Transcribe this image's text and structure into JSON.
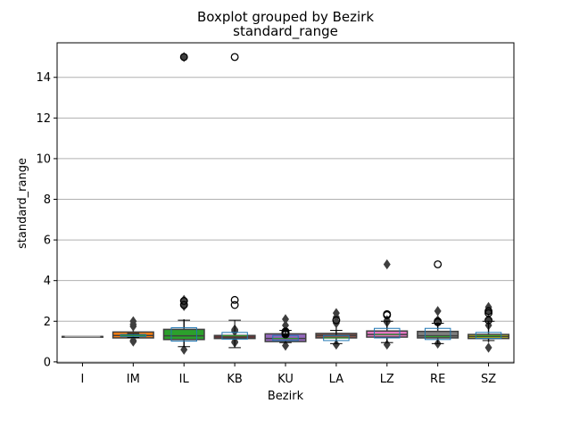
{
  "chart_data": {
    "type": "box",
    "suptitle": "Boxplot grouped by Bezirk",
    "title": "standard_range",
    "xlabel": "Bezirk",
    "ylabel": "standard_range",
    "ylim": [
      -0.05,
      15.7
    ],
    "yticks": [
      0,
      2,
      4,
      6,
      8,
      10,
      12,
      14
    ],
    "grid": "y",
    "categories": [
      "I",
      "IM",
      "IL",
      "KB",
      "KU",
      "LA",
      "LZ",
      "RE",
      "SZ"
    ],
    "seaborn_boxes": [
      {
        "category": "I",
        "color": "#7f7f7f",
        "q1": 1.25,
        "median": 1.25,
        "q3": 1.25,
        "whislo": 1.25,
        "whishi": 1.25,
        "fliers": []
      },
      {
        "category": "IM",
        "color": "#ff7f0e",
        "q1": 1.18,
        "median": 1.3,
        "q3": 1.47,
        "whislo": 1.08,
        "whishi": 1.62,
        "fliers": [
          1.0,
          1.05,
          1.75,
          1.85,
          2.0
        ]
      },
      {
        "category": "IL",
        "color": "#2ca02c",
        "q1": 1.1,
        "median": 1.28,
        "q3": 1.6,
        "whislo": 0.7,
        "whishi": 2.1,
        "fliers": [
          0.6,
          2.75,
          2.85,
          2.95,
          3.05,
          15.0
        ]
      },
      {
        "category": "KB",
        "color": "#d62728",
        "q1": 1.15,
        "median": 1.22,
        "q3": 1.3,
        "whislo": 1.05,
        "whishi": 1.45,
        "fliers": [
          0.95,
          1.0,
          1.5,
          1.55,
          1.6
        ]
      },
      {
        "category": "KU",
        "color": "#9467bd",
        "q1": 1.0,
        "median": 1.15,
        "q3": 1.38,
        "whislo": 0.85,
        "whishi": 1.7,
        "fliers": [
          0.8,
          1.8,
          2.1
        ]
      },
      {
        "category": "LA",
        "color": "#8c564b",
        "q1": 1.18,
        "median": 1.3,
        "q3": 1.4,
        "whislo": 0.9,
        "whishi": 1.75,
        "fliers": [
          0.85,
          1.9,
          2.0,
          2.2,
          2.4
        ]
      },
      {
        "category": "LZ",
        "color": "#e377c2",
        "q1": 1.22,
        "median": 1.35,
        "q3": 1.52,
        "whislo": 1.0,
        "whishi": 1.85,
        "fliers": [
          0.85,
          1.95,
          2.05,
          4.8
        ]
      },
      {
        "category": "RE",
        "color": "#7f7f7f",
        "q1": 1.18,
        "median": 1.28,
        "q3": 1.5,
        "whislo": 0.95,
        "whishi": 1.9,
        "fliers": [
          0.9,
          2.05,
          2.5
        ]
      },
      {
        "category": "SZ",
        "color": "#bcbd22",
        "q1": 1.15,
        "median": 1.25,
        "q3": 1.35,
        "whislo": 0.95,
        "whishi": 1.6,
        "fliers": [
          0.7,
          1.8,
          2.1,
          2.5,
          2.7
        ]
      }
    ],
    "pandas_boxes": [
      {
        "category": "I",
        "q1": 1.25,
        "median": 1.25,
        "q3": 1.25,
        "whislo": 1.25,
        "whishi": 1.25,
        "fliers": []
      },
      {
        "category": "IM",
        "q1": 1.25,
        "median": 1.3,
        "q3": 1.35,
        "whislo": 1.2,
        "whishi": 1.4,
        "fliers": []
      },
      {
        "category": "IL",
        "q1": 1.02,
        "median": 1.35,
        "q3": 1.68,
        "whislo": 0.75,
        "whishi": 2.05,
        "fliers": [
          2.8,
          3.0,
          15.0
        ]
      },
      {
        "category": "KB",
        "q1": 1.12,
        "median": 1.28,
        "q3": 1.45,
        "whislo": 0.7,
        "whishi": 2.05,
        "fliers": [
          2.8,
          3.05,
          15.0
        ]
      },
      {
        "category": "KU",
        "q1": 1.05,
        "median": 1.15,
        "q3": 1.3,
        "whislo": 0.95,
        "whishi": 1.55,
        "fliers": [
          1.35,
          1.4,
          1.45,
          1.5
        ]
      },
      {
        "category": "LA",
        "q1": 1.05,
        "median": 1.18,
        "q3": 1.3,
        "whislo": 0.9,
        "whishi": 1.55,
        "fliers": [
          2.05
        ]
      },
      {
        "category": "LZ",
        "q1": 1.18,
        "median": 1.35,
        "q3": 1.65,
        "whislo": 0.95,
        "whishi": 2.0,
        "fliers": [
          2.3,
          2.35
        ]
      },
      {
        "category": "RE",
        "q1": 1.1,
        "median": 1.25,
        "q3": 1.65,
        "whislo": 0.9,
        "whishi": 1.9,
        "fliers": [
          1.95,
          2.0,
          4.8
        ]
      },
      {
        "category": "SZ",
        "q1": 1.15,
        "median": 1.28,
        "q3": 1.45,
        "whislo": 1.05,
        "whishi": 2.0,
        "fliers": [
          2.05,
          2.4,
          2.5
        ]
      }
    ]
  }
}
